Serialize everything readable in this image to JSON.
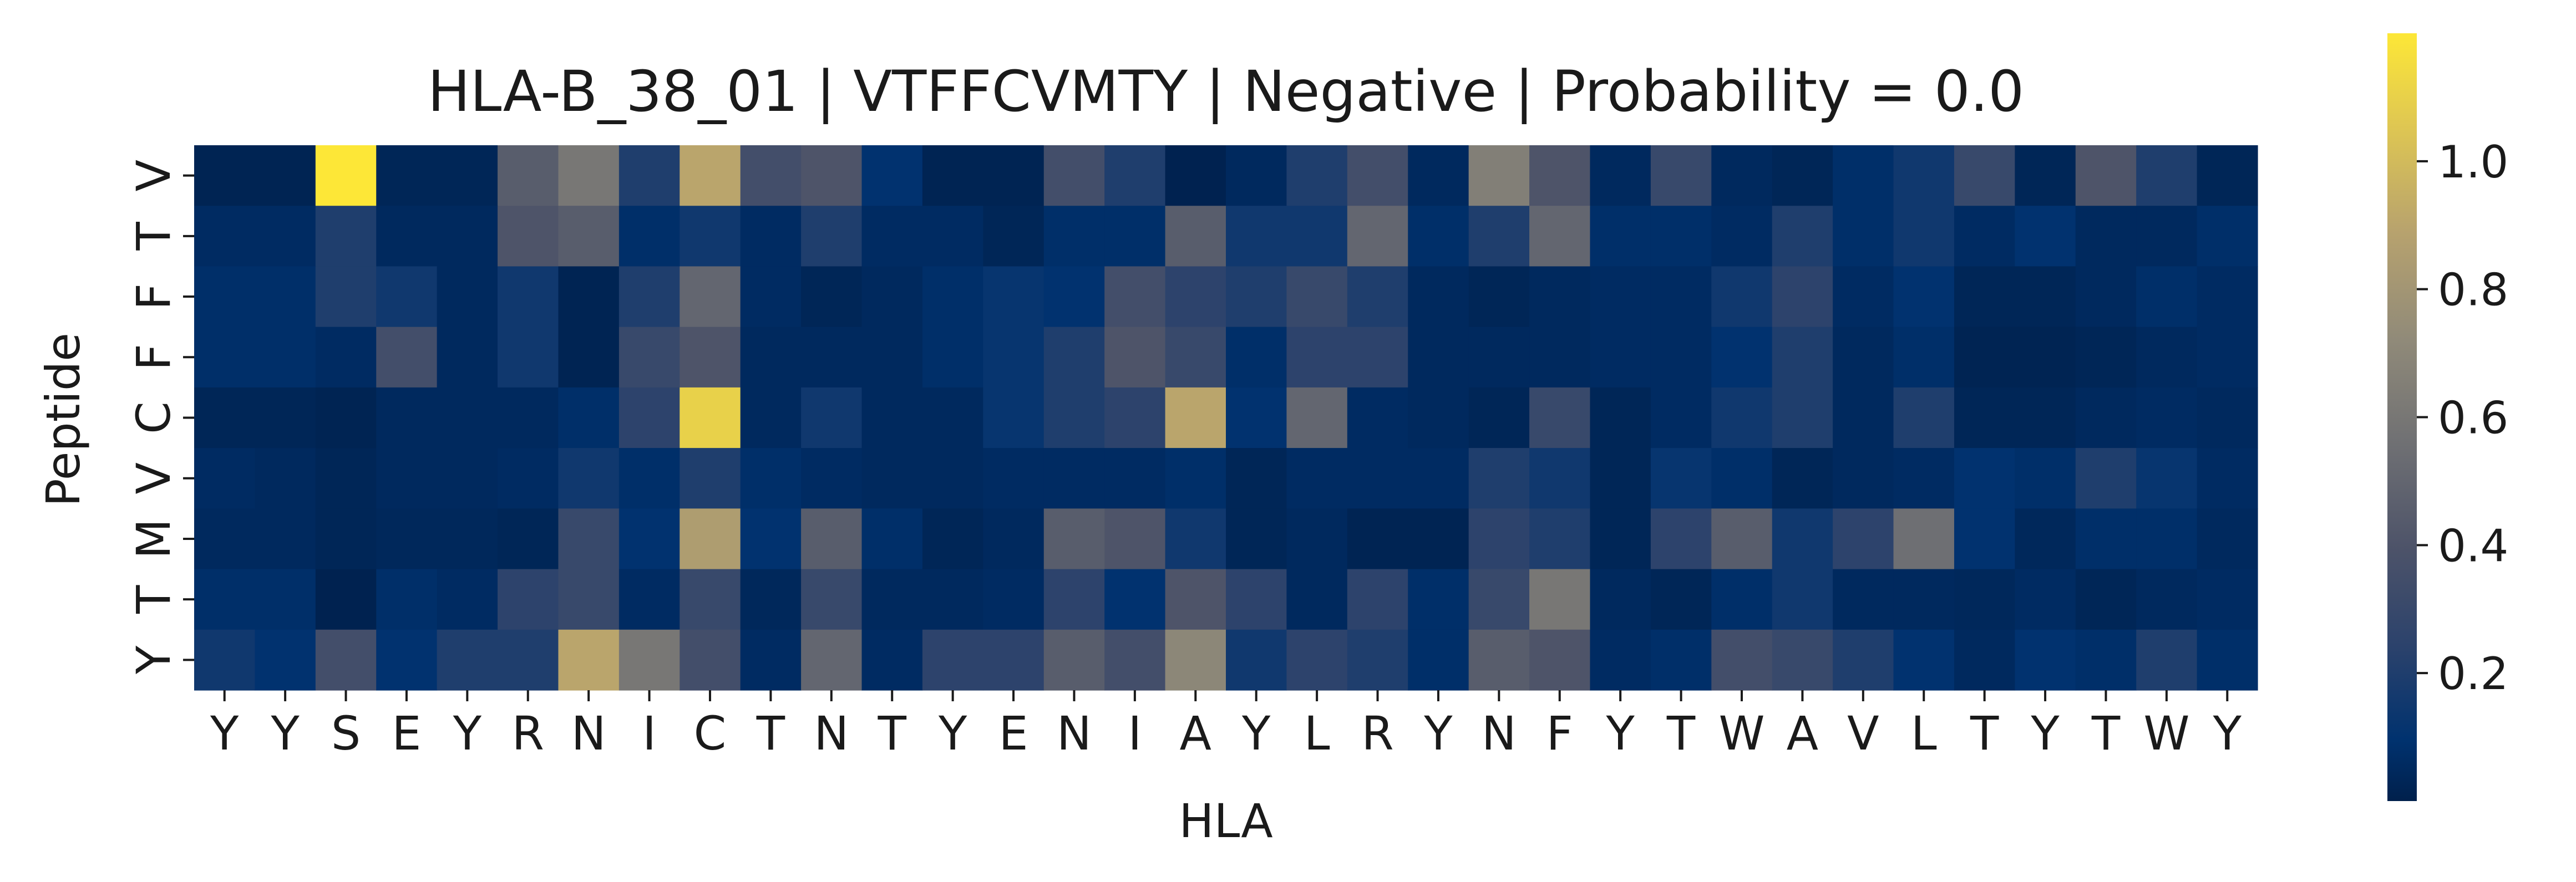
{
  "chart_data": {
    "type": "heatmap",
    "title": "HLA-B_38_01 | VTFFCVMTY | Negative | Probability = 0.0",
    "xlabel": "HLA",
    "ylabel": "Peptide",
    "x_categories": [
      "Y",
      "Y",
      "S",
      "E",
      "Y",
      "R",
      "N",
      "I",
      "C",
      "T",
      "N",
      "T",
      "Y",
      "E",
      "N",
      "I",
      "A",
      "Y",
      "L",
      "R",
      "Y",
      "N",
      "F",
      "Y",
      "T",
      "W",
      "A",
      "V",
      "L",
      "T",
      "Y",
      "T",
      "W",
      "Y"
    ],
    "y_categories": [
      "V",
      "T",
      "F",
      "F",
      "C",
      "V",
      "M",
      "T",
      "Y"
    ],
    "colormap": "cividis",
    "colorbar": {
      "min": 0.0,
      "max": 1.2,
      "ticks": [
        0.2,
        0.4,
        0.6,
        0.8,
        1.0
      ],
      "tick_labels": [
        "0.2",
        "0.4",
        "0.6",
        "0.8",
        "1.0"
      ]
    },
    "values": [
      [
        0.02,
        0.02,
        1.2,
        0.03,
        0.03,
        0.45,
        0.6,
        0.2,
        0.9,
        0.35,
        0.4,
        0.1,
        0.02,
        0.02,
        0.35,
        0.2,
        0.01,
        0.05,
        0.2,
        0.35,
        0.05,
        0.65,
        0.4,
        0.05,
        0.3,
        0.05,
        0.03,
        0.08,
        0.15,
        0.3,
        0.03,
        0.4,
        0.2,
        0.03
      ],
      [
        0.06,
        0.06,
        0.2,
        0.05,
        0.05,
        0.4,
        0.45,
        0.08,
        0.15,
        0.06,
        0.2,
        0.06,
        0.06,
        0.03,
        0.08,
        0.08,
        0.45,
        0.15,
        0.15,
        0.5,
        0.08,
        0.2,
        0.5,
        0.08,
        0.08,
        0.06,
        0.2,
        0.08,
        0.15,
        0.06,
        0.1,
        0.05,
        0.05,
        0.08
      ],
      [
        0.08,
        0.08,
        0.2,
        0.15,
        0.05,
        0.15,
        0.02,
        0.2,
        0.5,
        0.06,
        0.03,
        0.05,
        0.08,
        0.12,
        0.1,
        0.35,
        0.25,
        0.2,
        0.3,
        0.2,
        0.05,
        0.03,
        0.05,
        0.06,
        0.06,
        0.15,
        0.25,
        0.06,
        0.1,
        0.03,
        0.03,
        0.05,
        0.08,
        0.06
      ],
      [
        0.08,
        0.08,
        0.06,
        0.35,
        0.05,
        0.15,
        0.02,
        0.3,
        0.4,
        0.05,
        0.05,
        0.05,
        0.08,
        0.12,
        0.2,
        0.4,
        0.3,
        0.08,
        0.25,
        0.25,
        0.05,
        0.05,
        0.05,
        0.06,
        0.06,
        0.1,
        0.2,
        0.05,
        0.08,
        0.02,
        0.02,
        0.03,
        0.05,
        0.06
      ],
      [
        0.03,
        0.03,
        0.02,
        0.05,
        0.05,
        0.05,
        0.08,
        0.25,
        1.1,
        0.05,
        0.15,
        0.05,
        0.05,
        0.12,
        0.2,
        0.25,
        0.9,
        0.1,
        0.5,
        0.06,
        0.05,
        0.03,
        0.3,
        0.03,
        0.06,
        0.15,
        0.2,
        0.05,
        0.2,
        0.03,
        0.03,
        0.05,
        0.06,
        0.05
      ],
      [
        0.06,
        0.05,
        0.03,
        0.05,
        0.05,
        0.06,
        0.15,
        0.08,
        0.2,
        0.08,
        0.06,
        0.05,
        0.05,
        0.06,
        0.06,
        0.06,
        0.08,
        0.03,
        0.06,
        0.06,
        0.06,
        0.2,
        0.15,
        0.03,
        0.12,
        0.08,
        0.03,
        0.05,
        0.06,
        0.1,
        0.08,
        0.2,
        0.12,
        0.06
      ],
      [
        0.05,
        0.05,
        0.03,
        0.04,
        0.04,
        0.03,
        0.3,
        0.1,
        0.85,
        0.1,
        0.45,
        0.08,
        0.03,
        0.05,
        0.45,
        0.4,
        0.15,
        0.03,
        0.05,
        0.02,
        0.02,
        0.25,
        0.2,
        0.03,
        0.25,
        0.45,
        0.15,
        0.25,
        0.55,
        0.1,
        0.04,
        0.08,
        0.08,
        0.05
      ],
      [
        0.08,
        0.08,
        0.01,
        0.08,
        0.06,
        0.25,
        0.3,
        0.06,
        0.3,
        0.04,
        0.3,
        0.05,
        0.05,
        0.06,
        0.25,
        0.1,
        0.4,
        0.25,
        0.05,
        0.25,
        0.08,
        0.3,
        0.6,
        0.05,
        0.03,
        0.08,
        0.15,
        0.05,
        0.05,
        0.04,
        0.06,
        0.03,
        0.05,
        0.06
      ],
      [
        0.15,
        0.1,
        0.35,
        0.1,
        0.2,
        0.2,
        0.9,
        0.6,
        0.35,
        0.06,
        0.5,
        0.06,
        0.25,
        0.25,
        0.45,
        0.35,
        0.7,
        0.15,
        0.25,
        0.2,
        0.08,
        0.45,
        0.4,
        0.06,
        0.08,
        0.35,
        0.3,
        0.2,
        0.1,
        0.05,
        0.1,
        0.08,
        0.2,
        0.08
      ]
    ]
  }
}
